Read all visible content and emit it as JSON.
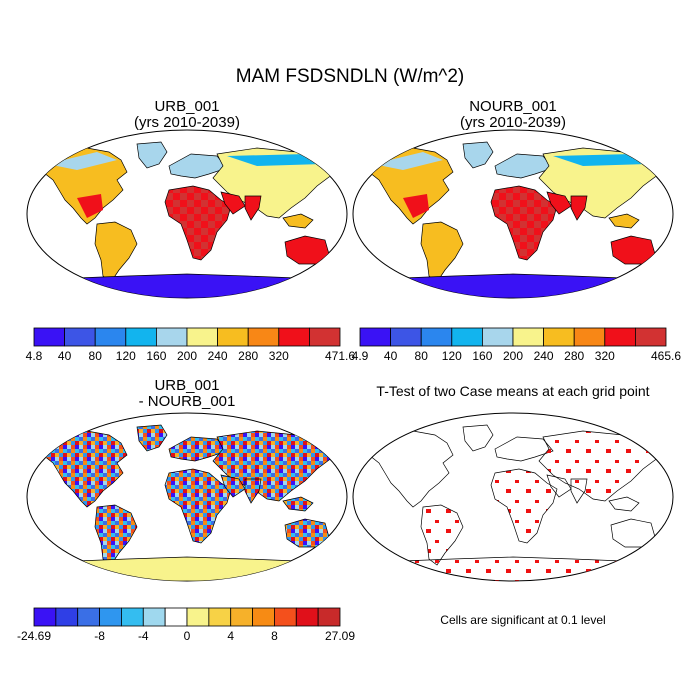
{
  "title": "MAM FSDSNDLN (W/m^2)",
  "colors": {
    "abs": [
      "#3a12f5",
      "#3d55e6",
      "#2b86ee",
      "#12b4ee",
      "#a8d6ec",
      "#f8f38c",
      "#f7bd20",
      "#f88716",
      "#f0101a",
      "#d23232"
    ],
    "diff": [
      "#3a12f5",
      "#2f3fe6",
      "#3a6fe6",
      "#2f96ef",
      "#34bdf0",
      "#9fd8ee",
      "#ffffff",
      "#f8f38c",
      "#f7d246",
      "#f6b12a",
      "#f78b14",
      "#f4501c",
      "#e0101a",
      "#c82a2a"
    ],
    "signif": "#ee1111",
    "ocean": "#ffffff",
    "coast": "#000000"
  },
  "panels": [
    {
      "title1": "URB_001",
      "title2": "(yrs 2010-2039)",
      "colorbar": {
        "labels": [
          "4.8",
          "40",
          "80",
          "120",
          "160",
          "200",
          "240",
          "280",
          "320",
          "471.6"
        ]
      }
    },
    {
      "title1": "NOURB_001",
      "title2": "(yrs 2010-2039)",
      "colorbar": {
        "labels": [
          "4.9",
          "40",
          "80",
          "120",
          "160",
          "200",
          "240",
          "280",
          "320",
          "465.6"
        ]
      }
    },
    {
      "title1": "URB_001",
      "title2": "- NOURB_001",
      "colorbar": {
        "labels": [
          "-24.69",
          "-8",
          "-4",
          "0",
          "4",
          "8",
          "27.09"
        ]
      }
    },
    {
      "title1": "T-Test of two Case means at each grid point",
      "note": "Cells are significant at 0.1 level"
    }
  ],
  "chart_data": [
    {
      "type": "heatmap",
      "title": "URB_001 (yrs 2010-2039)",
      "units": "W/m^2",
      "range": [
        4.8,
        471.6
      ],
      "contour_levels": [
        40,
        80,
        120,
        160,
        200,
        240,
        280,
        320
      ],
      "colorbar_labels": [
        "4.8",
        "40",
        "80",
        "120",
        "160",
        "200",
        "240",
        "280",
        "320",
        "471.6"
      ],
      "projection": "Robinson, global, land only"
    },
    {
      "type": "heatmap",
      "title": "NOURB_001 (yrs 2010-2039)",
      "units": "W/m^2",
      "range": [
        4.9,
        465.6
      ],
      "contour_levels": [
        40,
        80,
        120,
        160,
        200,
        240,
        280,
        320
      ],
      "colorbar_labels": [
        "4.9",
        "40",
        "80",
        "120",
        "160",
        "200",
        "240",
        "280",
        "320",
        "465.6"
      ],
      "projection": "Robinson, global, land only"
    },
    {
      "type": "heatmap",
      "title": "URB_001 - NOURB_001",
      "units": "W/m^2",
      "range": [
        -24.69,
        27.09
      ],
      "colorbar_labels": [
        "-24.69",
        "-8",
        "-4",
        "0",
        "4",
        "8",
        "27.09"
      ],
      "projection": "Robinson, global, land only"
    },
    {
      "type": "heatmap",
      "title": "T-Test of two Case means at each grid point",
      "significance_level": 0.1,
      "note": "Cells are significant at 0.1 level",
      "projection": "Robinson, global, land only"
    }
  ]
}
